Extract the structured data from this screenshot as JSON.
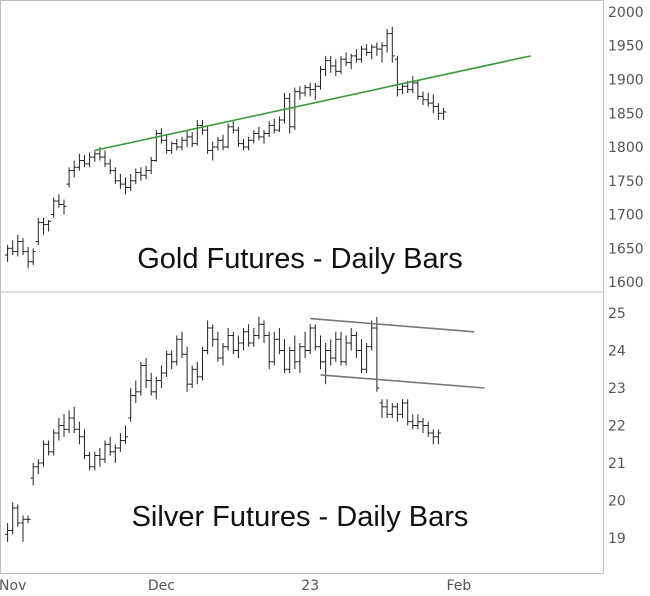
{
  "chart_data": [
    {
      "type": "ohlc",
      "title": "Gold Futures - Daily Bars",
      "ylim": [
        1595,
        2005
      ],
      "y_ticks": [
        1600,
        1650,
        1700,
        1750,
        1800,
        1850,
        1900,
        1950,
        2000
      ],
      "trendlines": [
        {
          "color": "#3a9a3a",
          "from": {
            "bar": 17,
            "y": 1795
          },
          "to": {
            "bar": 102,
            "y": 1935
          }
        }
      ],
      "bars": [
        [
          1640,
          1655,
          1630,
          1650
        ],
        [
          1650,
          1662,
          1640,
          1645
        ],
        [
          1645,
          1670,
          1638,
          1660
        ],
        [
          1660,
          1665,
          1640,
          1645
        ],
        [
          1645,
          1652,
          1620,
          1630
        ],
        [
          1630,
          1650,
          1625,
          1645
        ],
        [
          1660,
          1695,
          1655,
          1688
        ],
        [
          1688,
          1695,
          1670,
          1685
        ],
        [
          1685,
          1692,
          1675,
          1690
        ],
        [
          1700,
          1725,
          1695,
          1720
        ],
        [
          1720,
          1730,
          1710,
          1715
        ],
        [
          1715,
          1722,
          1700,
          1712
        ],
        [
          1745,
          1770,
          1740,
          1765
        ],
        [
          1765,
          1780,
          1755,
          1770
        ],
        [
          1770,
          1790,
          1765,
          1780
        ],
        [
          1780,
          1788,
          1770,
          1775
        ],
        [
          1775,
          1792,
          1770,
          1785
        ],
        [
          1785,
          1795,
          1778,
          1790
        ],
        [
          1790,
          1800,
          1780,
          1785
        ],
        [
          1785,
          1795,
          1770,
          1775
        ],
        [
          1775,
          1782,
          1760,
          1765
        ],
        [
          1765,
          1770,
          1745,
          1750
        ],
        [
          1750,
          1760,
          1738,
          1745
        ],
        [
          1745,
          1755,
          1730,
          1740
        ],
        [
          1740,
          1760,
          1735,
          1750
        ],
        [
          1750,
          1768,
          1745,
          1762
        ],
        [
          1762,
          1770,
          1750,
          1758
        ],
        [
          1758,
          1772,
          1752,
          1765
        ],
        [
          1765,
          1785,
          1760,
          1780
        ],
        [
          1780,
          1825,
          1778,
          1820
        ],
        [
          1820,
          1828,
          1805,
          1810
        ],
        [
          1810,
          1818,
          1790,
          1795
        ],
        [
          1795,
          1808,
          1790,
          1805
        ],
        [
          1805,
          1812,
          1795,
          1800
        ],
        [
          1800,
          1815,
          1795,
          1810
        ],
        [
          1810,
          1825,
          1800,
          1815
        ],
        [
          1815,
          1822,
          1800,
          1805
        ],
        [
          1805,
          1840,
          1802,
          1832
        ],
        [
          1832,
          1840,
          1818,
          1825
        ],
        [
          1825,
          1830,
          1790,
          1795
        ],
        [
          1795,
          1808,
          1780,
          1800
        ],
        [
          1800,
          1815,
          1795,
          1810
        ],
        [
          1810,
          1818,
          1795,
          1800
        ],
        [
          1800,
          1835,
          1798,
          1830
        ],
        [
          1830,
          1838,
          1820,
          1825
        ],
        [
          1825,
          1830,
          1800,
          1805
        ],
        [
          1805,
          1812,
          1795,
          1800
        ],
        [
          1800,
          1815,
          1795,
          1810
        ],
        [
          1810,
          1825,
          1805,
          1820
        ],
        [
          1820,
          1830,
          1810,
          1815
        ],
        [
          1815,
          1825,
          1805,
          1820
        ],
        [
          1820,
          1838,
          1815,
          1832
        ],
        [
          1832,
          1842,
          1820,
          1825
        ],
        [
          1825,
          1845,
          1822,
          1840
        ],
        [
          1840,
          1880,
          1835,
          1872
        ],
        [
          1872,
          1880,
          1820,
          1830
        ],
        [
          1830,
          1888,
          1825,
          1882
        ],
        [
          1882,
          1890,
          1870,
          1880
        ],
        [
          1880,
          1892,
          1875,
          1888
        ],
        [
          1888,
          1895,
          1875,
          1885
        ],
        [
          1885,
          1895,
          1870,
          1890
        ],
        [
          1890,
          1920,
          1885,
          1915
        ],
        [
          1915,
          1935,
          1905,
          1928
        ],
        [
          1928,
          1935,
          1910,
          1920
        ],
        [
          1920,
          1930,
          1905,
          1912
        ],
        [
          1912,
          1935,
          1908,
          1930
        ],
        [
          1930,
          1940,
          1920,
          1925
        ],
        [
          1925,
          1938,
          1915,
          1935
        ],
        [
          1935,
          1945,
          1925,
          1930
        ],
        [
          1930,
          1950,
          1925,
          1945
        ],
        [
          1945,
          1952,
          1935,
          1940
        ],
        [
          1940,
          1952,
          1930,
          1948
        ],
        [
          1948,
          1955,
          1935,
          1945
        ],
        [
          1945,
          1955,
          1925,
          1950
        ],
        [
          1950,
          1975,
          1940,
          1968
        ],
        [
          1968,
          1978,
          1925,
          1935
        ],
        [
          1930,
          1935,
          1875,
          1885
        ],
        [
          1885,
          1895,
          1878,
          1890
        ],
        [
          1890,
          1898,
          1880,
          1885
        ],
        [
          1885,
          1905,
          1880,
          1895
        ],
        [
          1895,
          1900,
          1870,
          1875
        ],
        [
          1875,
          1882,
          1862,
          1870
        ],
        [
          1870,
          1880,
          1860,
          1865
        ],
        [
          1865,
          1878,
          1850,
          1860
        ],
        [
          1860,
          1865,
          1840,
          1850
        ],
        [
          1850,
          1858,
          1840,
          1852
        ]
      ]
    },
    {
      "type": "ohlc",
      "title": "Silver Futures - Daily Bars",
      "ylim": [
        18.7,
        25.35
      ],
      "y_ticks": [
        19,
        20,
        21,
        22,
        23,
        24,
        25
      ],
      "trendlines": [
        {
          "color": "#777777",
          "from": {
            "bar": 59,
            "y": 24.85
          },
          "to": {
            "bar": 91,
            "y": 24.5
          }
        },
        {
          "color": "#777777",
          "from": {
            "bar": 61,
            "y": 23.35
          },
          "to": {
            "bar": 93,
            "y": 23.0
          }
        }
      ],
      "bars": [
        [
          19.1,
          19.4,
          18.9,
          19.2
        ],
        [
          19.2,
          19.95,
          19.1,
          19.8
        ],
        [
          19.8,
          19.9,
          19.3,
          19.4
        ],
        [
          19.4,
          19.6,
          18.9,
          19.5
        ],
        [
          19.5,
          19.6,
          19.4,
          19.5
        ],
        [
          20.6,
          21.0,
          20.4,
          20.9
        ],
        [
          20.9,
          21.1,
          20.7,
          21.0
        ],
        [
          21.0,
          21.6,
          20.9,
          21.5
        ],
        [
          21.5,
          21.6,
          21.2,
          21.3
        ],
        [
          21.3,
          21.9,
          21.2,
          21.8
        ],
        [
          21.8,
          22.2,
          21.6,
          22.0
        ],
        [
          22.0,
          22.3,
          21.7,
          21.9
        ],
        [
          21.9,
          22.4,
          21.8,
          22.2
        ],
        [
          22.2,
          22.5,
          21.8,
          21.9
        ],
        [
          21.9,
          22.1,
          21.5,
          21.7
        ],
        [
          21.7,
          21.9,
          21.1,
          21.2
        ],
        [
          21.2,
          21.3,
          20.8,
          20.9
        ],
        [
          20.9,
          21.3,
          20.8,
          21.2
        ],
        [
          21.2,
          21.4,
          20.9,
          21.1
        ],
        [
          21.1,
          21.6,
          21.0,
          21.5
        ],
        [
          21.5,
          21.7,
          21.2,
          21.3
        ],
        [
          21.3,
          21.5,
          21.0,
          21.4
        ],
        [
          21.4,
          21.8,
          21.3,
          21.6
        ],
        [
          21.6,
          22.0,
          21.5,
          21.7
        ],
        [
          22.2,
          23.0,
          22.1,
          22.8
        ],
        [
          22.8,
          23.2,
          22.6,
          22.9
        ],
        [
          22.9,
          23.7,
          22.8,
          23.6
        ],
        [
          23.6,
          23.8,
          23.0,
          23.2
        ],
        [
          23.2,
          23.4,
          22.8,
          22.9
        ],
        [
          22.9,
          23.3,
          22.7,
          23.2
        ],
        [
          23.2,
          23.6,
          23.0,
          23.4
        ],
        [
          23.4,
          24.0,
          23.3,
          23.9
        ],
        [
          23.9,
          24.0,
          23.5,
          23.7
        ],
        [
          23.7,
          24.4,
          23.6,
          24.3
        ],
        [
          24.3,
          24.5,
          23.8,
          23.9
        ],
        [
          23.9,
          24.1,
          22.9,
          23.1
        ],
        [
          23.1,
          23.6,
          23.0,
          23.5
        ],
        [
          23.5,
          23.7,
          23.1,
          23.3
        ],
        [
          23.3,
          24.1,
          23.2,
          24.0
        ],
        [
          24.0,
          24.8,
          23.9,
          24.6
        ],
        [
          24.6,
          24.7,
          24.1,
          24.3
        ],
        [
          24.3,
          24.5,
          23.7,
          23.8
        ],
        [
          23.8,
          24.2,
          23.6,
          24.1
        ],
        [
          24.1,
          24.6,
          24.0,
          24.4
        ],
        [
          24.4,
          24.5,
          23.9,
          24.0
        ],
        [
          24.0,
          24.4,
          23.8,
          24.2
        ],
        [
          24.2,
          24.6,
          24.0,
          24.5
        ],
        [
          24.5,
          24.7,
          24.1,
          24.2
        ],
        [
          24.2,
          24.6,
          24.1,
          24.4
        ],
        [
          24.4,
          24.9,
          24.3,
          24.7
        ],
        [
          24.7,
          24.8,
          24.2,
          24.4
        ],
        [
          24.4,
          24.5,
          23.5,
          23.7
        ],
        [
          23.7,
          24.5,
          23.6,
          24.3
        ],
        [
          24.3,
          24.6,
          23.9,
          24.0
        ],
        [
          24.0,
          24.3,
          23.4,
          23.5
        ],
        [
          23.5,
          24.1,
          23.4,
          24.0
        ],
        [
          24.0,
          24.4,
          23.5,
          23.7
        ],
        [
          23.7,
          24.2,
          23.4,
          24.1
        ],
        [
          24.1,
          24.5,
          23.8,
          24.0
        ],
        [
          24.0,
          24.7,
          23.9,
          24.6
        ],
        [
          24.6,
          24.7,
          24.0,
          24.1
        ],
        [
          24.1,
          24.4,
          23.5,
          23.7
        ],
        [
          23.7,
          24.2,
          23.1,
          24.0
        ],
        [
          24.0,
          24.3,
          23.6,
          23.8
        ],
        [
          23.8,
          24.5,
          23.7,
          24.3
        ],
        [
          24.3,
          24.5,
          23.6,
          23.7
        ],
        [
          23.7,
          24.4,
          23.6,
          24.2
        ],
        [
          24.2,
          24.6,
          24.0,
          24.4
        ],
        [
          24.4,
          24.5,
          23.8,
          24.0
        ],
        [
          24.0,
          24.3,
          23.4,
          23.5
        ],
        [
          23.5,
          24.2,
          23.4,
          24.1
        ],
        [
          24.1,
          24.8,
          24.0,
          24.6
        ],
        [
          24.6,
          24.9,
          22.9,
          23.0
        ],
        [
          22.6,
          22.7,
          22.2,
          22.5
        ],
        [
          22.5,
          22.7,
          22.2,
          22.3
        ],
        [
          22.3,
          22.6,
          22.2,
          22.5
        ],
        [
          22.5,
          22.6,
          22.1,
          22.3
        ],
        [
          22.3,
          22.7,
          22.2,
          22.6
        ],
        [
          22.6,
          22.7,
          22.0,
          22.1
        ],
        [
          22.1,
          22.3,
          21.9,
          22.0
        ],
        [
          22.0,
          22.3,
          21.9,
          22.1
        ],
        [
          22.1,
          22.2,
          21.8,
          22.0
        ],
        [
          22.0,
          22.1,
          21.7,
          21.8
        ],
        [
          21.8,
          21.9,
          21.5,
          21.7
        ],
        [
          21.7,
          21.9,
          21.5,
          21.8
        ]
      ]
    }
  ],
  "x_axis": {
    "ticks": [
      {
        "label": "Nov",
        "bar": 1
      },
      {
        "label": "Dec",
        "bar": 30
      },
      {
        "label": "23",
        "bar": 59
      },
      {
        "label": "Feb",
        "bar": 88
      }
    ],
    "bar_count": 116
  }
}
